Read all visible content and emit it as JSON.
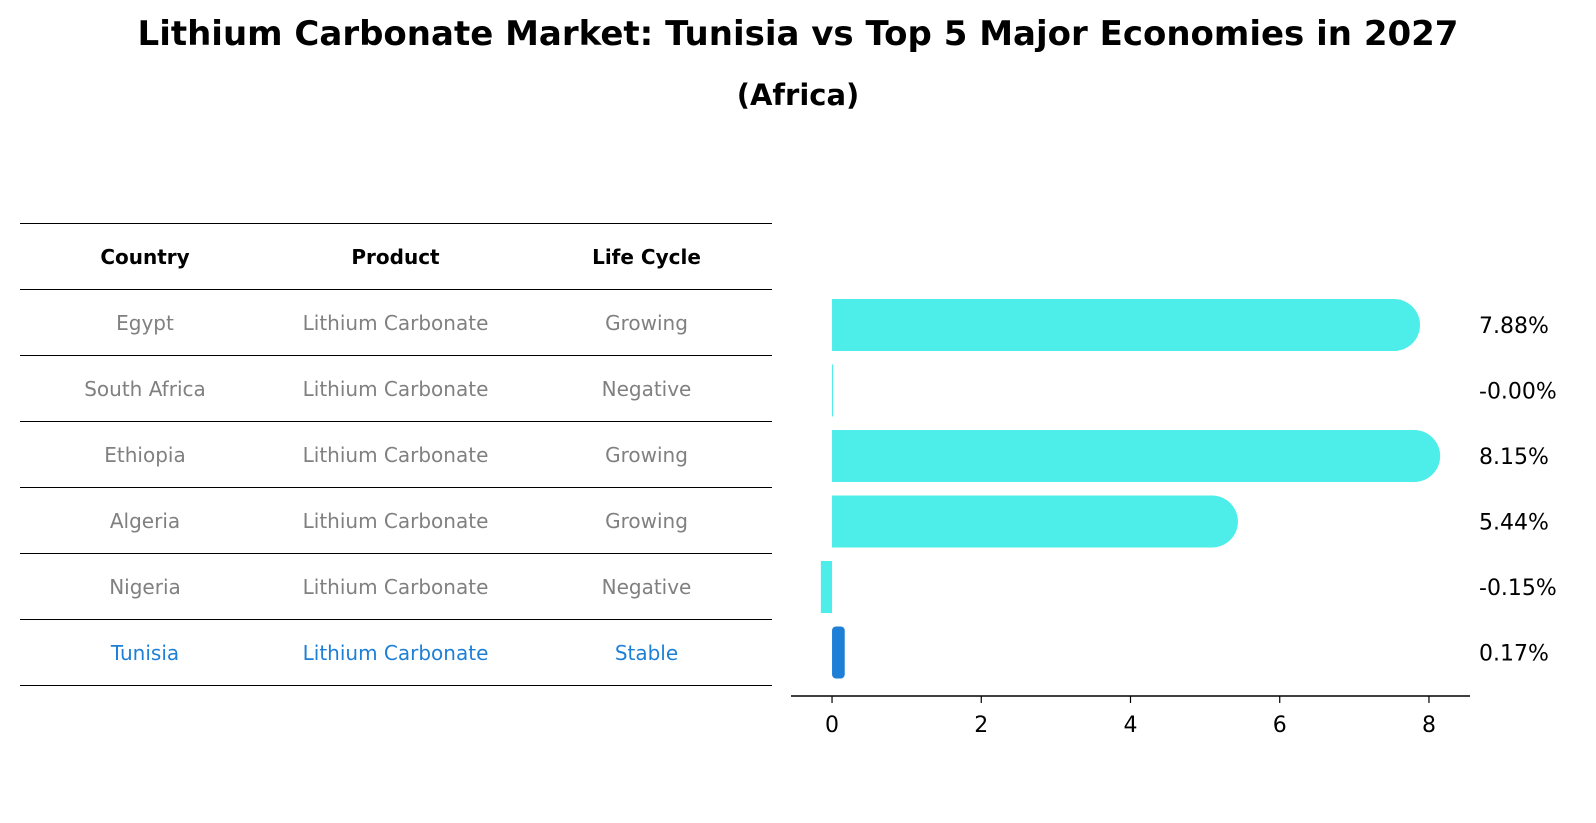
{
  "chart_data": {
    "type": "bar",
    "orientation": "horizontal",
    "title": "Lithium Carbonate Market: Tunisia vs Top 5 Major Economies in 2027",
    "subtitle": "(Africa)",
    "categories": [
      "Egypt",
      "South Africa",
      "Ethiopia",
      "Algeria",
      "Nigeria",
      "Tunisia"
    ],
    "values": [
      7.88,
      -0.0,
      8.15,
      5.44,
      -0.15,
      0.17
    ],
    "value_labels": [
      "7.88%",
      "-0.00%",
      "8.15%",
      "5.44%",
      "-0.15%",
      "0.17%"
    ],
    "x_ticks": [
      "0",
      "2",
      "4",
      "6",
      "8"
    ],
    "xlim": [
      -0.55,
      8.55
    ],
    "highlight": "Tunisia",
    "bar_color": "#4DEEEA",
    "highlight_color": "#1E7FD6"
  },
  "table": {
    "headers": [
      "Country",
      "Product",
      "Life Cycle"
    ],
    "rows": [
      [
        "Egypt",
        "Lithium Carbonate",
        "Growing"
      ],
      [
        "South Africa",
        "Lithium Carbonate",
        "Negative"
      ],
      [
        "Ethiopia",
        "Lithium Carbonate",
        "Growing"
      ],
      [
        "Algeria",
        "Lithium Carbonate",
        "Growing"
      ],
      [
        "Nigeria",
        "Lithium Carbonate",
        "Negative"
      ],
      [
        "Tunisia",
        "Lithium Carbonate",
        "Stable"
      ]
    ]
  }
}
